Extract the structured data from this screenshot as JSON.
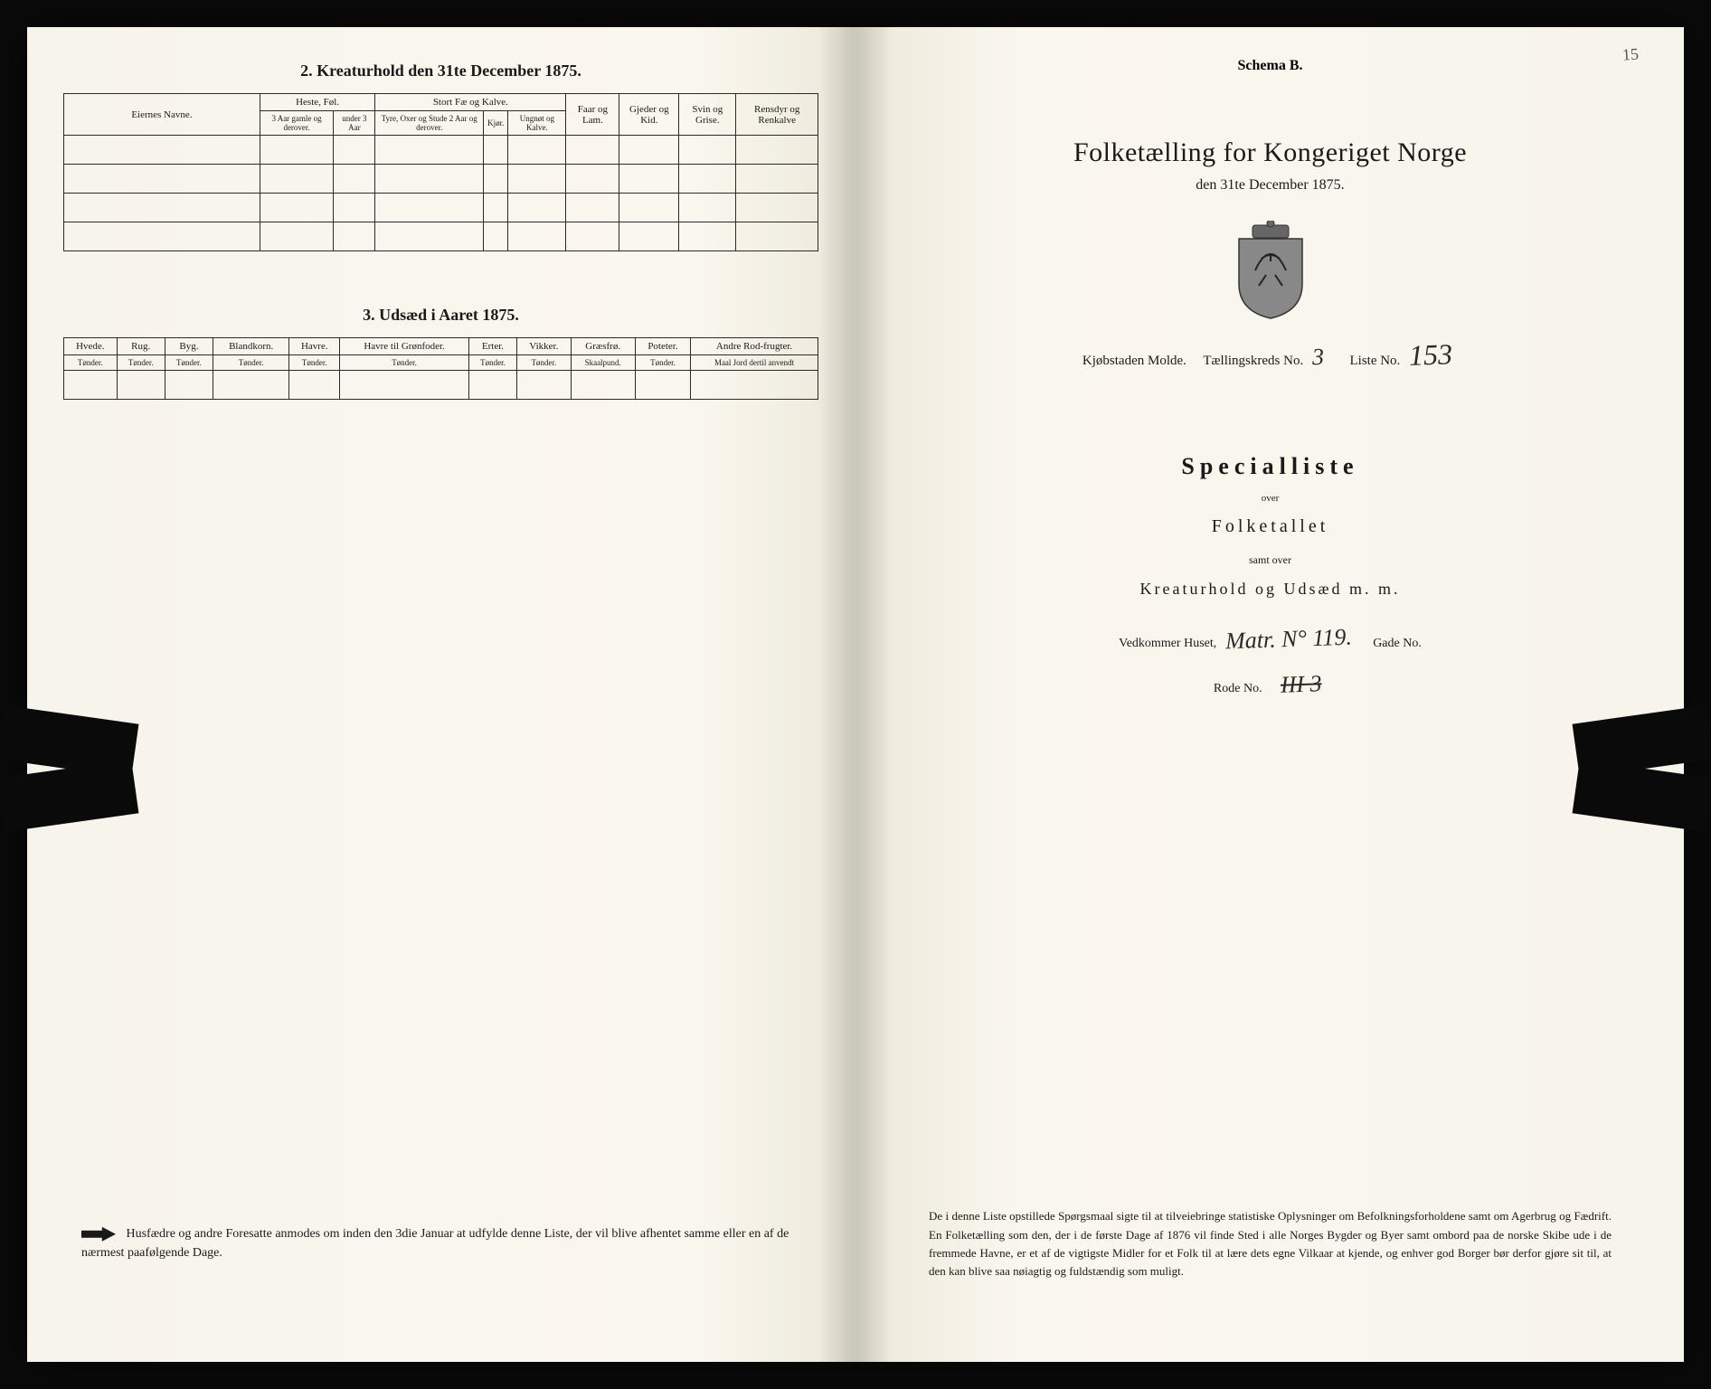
{
  "left": {
    "section2_title": "2.  Kreaturhold den 31te December 1875.",
    "table2": {
      "col_eiernes": "Eiernes Navne.",
      "grp_heste": "Heste, Føl.",
      "grp_stort": "Stort Fæ og Kalve.",
      "col_faar": "Faar og Lam.",
      "col_gjeder": "Gjeder og Kid.",
      "col_svin": "Svin og Grise.",
      "col_rensdyr": "Rensdyr og Renkalve",
      "sub_3aar": "3 Aar gamle og derover.",
      "sub_under3": "under 3 Aar",
      "sub_tyre": "Tyre, Oxer og Stude 2 Aar og derover.",
      "sub_kjor": "Kjør.",
      "sub_ungnot": "Ungnøt og Kalve."
    },
    "section3_title": "3.  Udsæd i Aaret 1875.",
    "table3": {
      "cols": [
        "Hvede.",
        "Rug.",
        "Byg.",
        "Blandkorn.",
        "Havre.",
        "Havre til Grønfoder.",
        "Erter.",
        "Vikker.",
        "Græsfrø.",
        "Poteter.",
        "Andre Rod-frugter."
      ],
      "units": [
        "Tønder.",
        "Tønder.",
        "Tønder.",
        "Tønder.",
        "Tønder.",
        "Tønder.",
        "Tønder.",
        "Tønder.",
        "Skaalpund.",
        "Tønder.",
        "Maal Jord dertil anvendt"
      ]
    },
    "footnote": "Husfædre og andre Foresatte anmodes om inden den 3die Januar at udfylde denne Liste, der vil blive afhentet samme eller en af de nærmest paafølgende Dage."
  },
  "right": {
    "page_num": "15",
    "schema": "Schema B.",
    "main_title": "Folketælling for Kongeriget Norge",
    "sub_title": "den 31te December 1875.",
    "location_prefix": "Kjøbstaden Molde.",
    "tkreds_label": "Tællingskreds No.",
    "tkreds_val": "3",
    "liste_label": "Liste No.",
    "liste_val": "153",
    "special": "Specialliste",
    "over": "over",
    "folketallet": "Folketallet",
    "samt": "samt over",
    "kreatur": "Kreaturhold og Udsæd m. m.",
    "vedkommer_label": "Vedkommer Huset,",
    "vedkommer_val": "Matr. N° 119.",
    "gade_label": "Gade No.",
    "rode_label": "Rode No.",
    "rode_val": "III  3",
    "bottom_para": "De i denne Liste opstillede Spørgsmaal sigte til at tilveiebringe statistiske Oplysninger om Befolkningsforholdene samt om Agerbrug og Fædrift. En Folketælling som den, der i de første Dage af 1876 vil finde Sted i alle Norges Bygder og Byer samt ombord paa de norske Skibe ude i de fremmede Havne, er et af de vigtigste Midler for et Folk til at lære dets egne Vilkaar at kjende, og enhver god Borger bør derfor gjøre sit til, at den kan blive saa nøiagtig og fuldstændig som muligt."
  }
}
